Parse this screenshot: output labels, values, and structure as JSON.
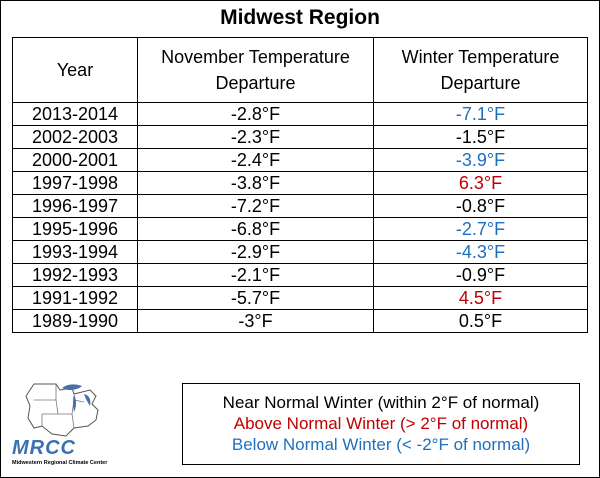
{
  "title": "Midwest Region",
  "chart_data": {
    "type": "table",
    "columns": [
      "Year",
      "November Temperature Departure",
      "Winter Temperature Departure"
    ],
    "rows": [
      {
        "year": "2013-2014",
        "november": "-2.8°F",
        "winter": "-7.1°F",
        "category": "below"
      },
      {
        "year": "2002-2003",
        "november": "-2.3°F",
        "winter": "-1.5°F",
        "category": "near"
      },
      {
        "year": "2000-2001",
        "november": "-2.4°F",
        "winter": "-3.9°F",
        "category": "below"
      },
      {
        "year": "1997-1998",
        "november": "-3.8°F",
        "winter": "6.3°F",
        "category": "above"
      },
      {
        "year": "1996-1997",
        "november": "-7.2°F",
        "winter": "-0.8°F",
        "category": "near"
      },
      {
        "year": "1995-1996",
        "november": "-6.8°F",
        "winter": "-2.7°F",
        "category": "below"
      },
      {
        "year": "1993-1994",
        "november": "-2.9°F",
        "winter": "-4.3°F",
        "category": "below"
      },
      {
        "year": "1992-1993",
        "november": "-2.1°F",
        "winter": "-0.9°F",
        "category": "near"
      },
      {
        "year": "1991-1992",
        "november": "-5.7°F",
        "winter": "4.5°F",
        "category": "above"
      },
      {
        "year": "1989-1990",
        "november": "-3°F",
        "winter": "0.5°F",
        "category": "near"
      }
    ]
  },
  "legend": {
    "near": "Near Normal Winter (within 2°F of normal)",
    "above": "Above Normal Winter (> 2°F of normal)",
    "below": "Below Normal Winter (< -2°F of normal)"
  },
  "colors": {
    "above": "#c00000",
    "below": "#1f6fbf",
    "near": "#000000",
    "logo": "#3b70b5"
  },
  "logo": {
    "text": "MRCC",
    "subtitle": "Midwestern Regional Climate Center"
  }
}
